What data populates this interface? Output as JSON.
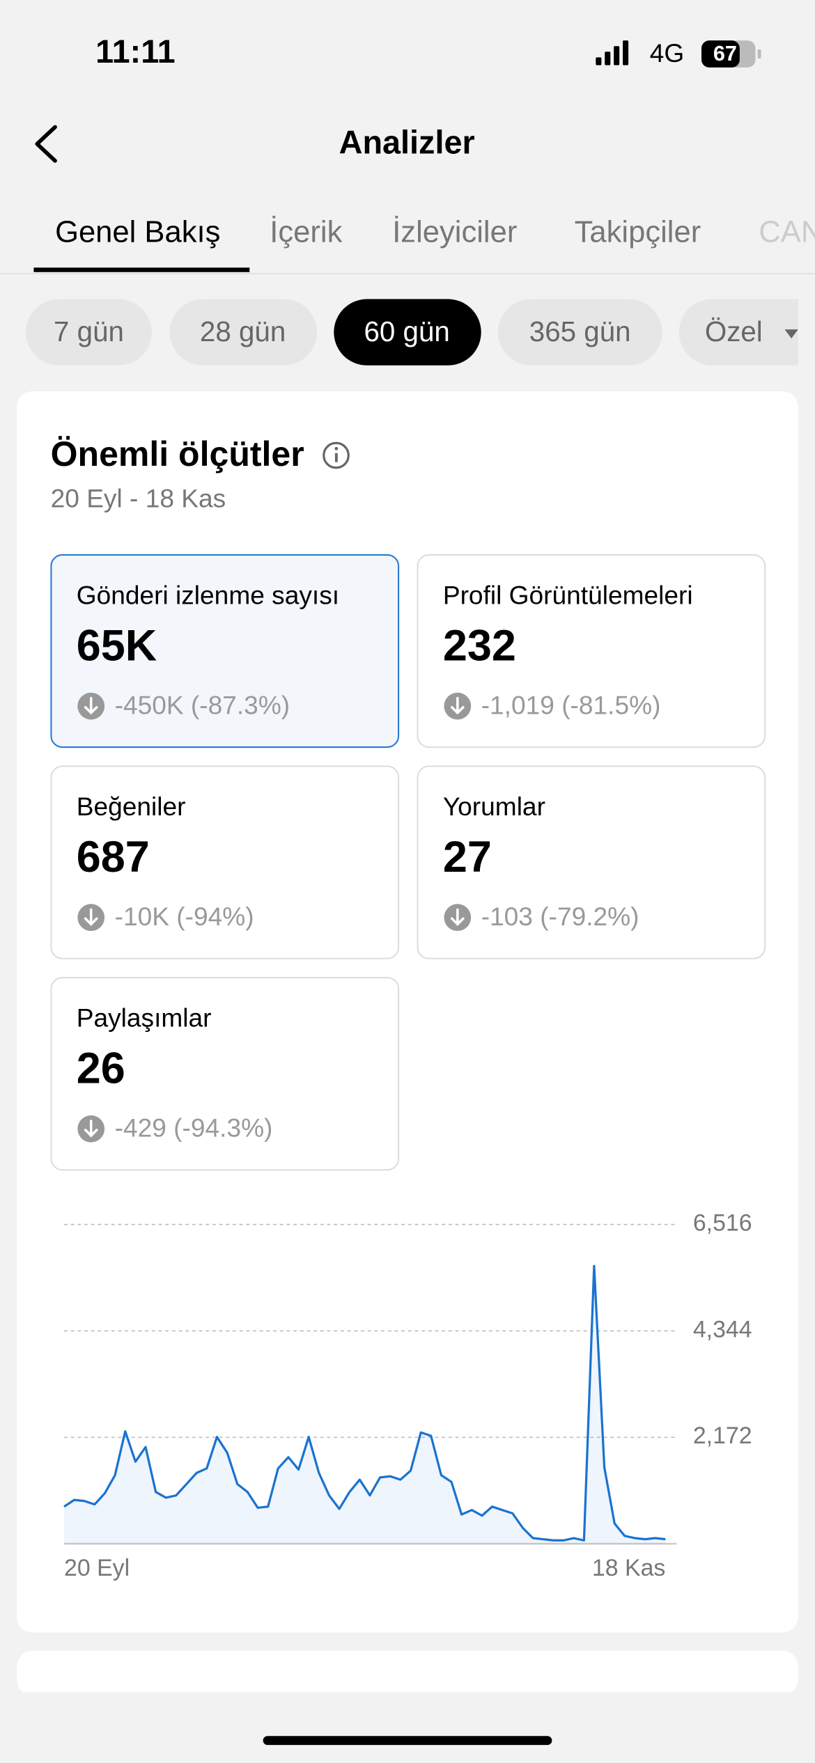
{
  "status_bar": {
    "time": "11:11",
    "network": "4G",
    "battery": "67"
  },
  "header": {
    "title": "Analizler"
  },
  "tabs": [
    "Genel Bakış",
    "İçerik",
    "İzleyiciler",
    "Takipçiler",
    "CAN"
  ],
  "date_ranges": [
    "7 gün",
    "28 gün",
    "60 gün",
    "365 gün",
    "Özel"
  ],
  "section": {
    "title": "Önemli ölçütler",
    "date_range": "20 Eyl - 18 Kas"
  },
  "metrics": [
    {
      "label": "Gönderi izlenme sayısı",
      "value": "65K",
      "change": "-450K (-87.3%)"
    },
    {
      "label": "Profil Görüntülemeleri",
      "value": "232",
      "change": "-1,019 (-81.5%)"
    },
    {
      "label": "Beğeniler",
      "value": "687",
      "change": "-10K (-94%)"
    },
    {
      "label": "Yorumlar",
      "value": "27",
      "change": "-103 (-79.2%)"
    },
    {
      "label": "Paylaşımlar",
      "value": "26",
      "change": "-429 (-94.3%)"
    }
  ],
  "chart_data": {
    "type": "line",
    "categories": [
      "20 Eyl",
      null,
      null,
      null,
      null,
      null,
      null,
      null,
      null,
      null,
      null,
      null,
      null,
      null,
      null,
      null,
      null,
      null,
      null,
      null,
      null,
      null,
      null,
      null,
      null,
      null,
      null,
      null,
      null,
      null,
      null,
      null,
      null,
      null,
      null,
      null,
      null,
      null,
      null,
      null,
      null,
      null,
      null,
      null,
      null,
      null,
      null,
      null,
      null,
      null,
      null,
      null,
      null,
      null,
      null,
      null,
      null,
      null,
      null,
      "18 Kas"
    ],
    "values": [
      757,
      895,
      872,
      803,
      1032,
      1399,
      2294,
      1675,
      1973,
      1055,
      941,
      986,
      1216,
      1445,
      1537,
      2179,
      1858,
      1216,
      1055,
      734,
      757,
      1537,
      1766,
      1514,
      2179,
      1445,
      986,
      711,
      1055,
      1308,
      986,
      1353,
      1376,
      1308,
      1491,
      2271,
      2202,
      1399,
      1262,
      596,
      688,
      573,
      757,
      688,
      619,
      321,
      115,
      92,
      69,
      69,
      115,
      69,
      5666,
      1560,
      413,
      161,
      115,
      92,
      115,
      92
    ],
    "color": "#1a73d0",
    "ylim": [
      0,
      6516
    ],
    "yticks": [
      {
        "value": 2172,
        "label": "2,172"
      },
      {
        "value": 4344,
        "label": "4,344"
      },
      {
        "value": 6516,
        "label": "6,516"
      }
    ],
    "grid": true
  }
}
